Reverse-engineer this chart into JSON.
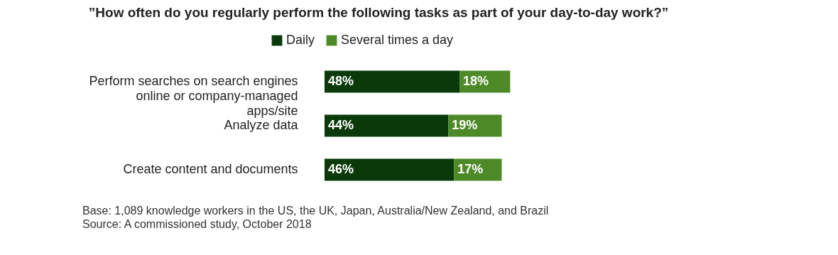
{
  "chart_data": {
    "type": "bar",
    "orientation": "horizontal",
    "stacked": true,
    "title": "”How often do you regularly perform the following tasks as part of your day-to-day work?”",
    "categories": [
      "Perform searches on search engines online or company-managed apps/site",
      "Analyze data",
      "Create content and documents"
    ],
    "series": [
      {
        "name": "Daily",
        "color": "#0a3a0a",
        "values": [
          48,
          44,
          46
        ],
        "value_labels": [
          "48%",
          "44%",
          "46%"
        ]
      },
      {
        "name": "Several times a day",
        "color": "#4d8a27",
        "values": [
          18,
          19,
          17
        ],
        "value_labels": [
          "18%",
          "19%",
          "17%"
        ]
      }
    ],
    "legend": "top",
    "annotations": [
      "Base: 1,089 knowledge workers in the US, the UK, Japan, Australia/New Zealand, and Brazil",
      "Source: A commissioned study, October 2018"
    ]
  }
}
